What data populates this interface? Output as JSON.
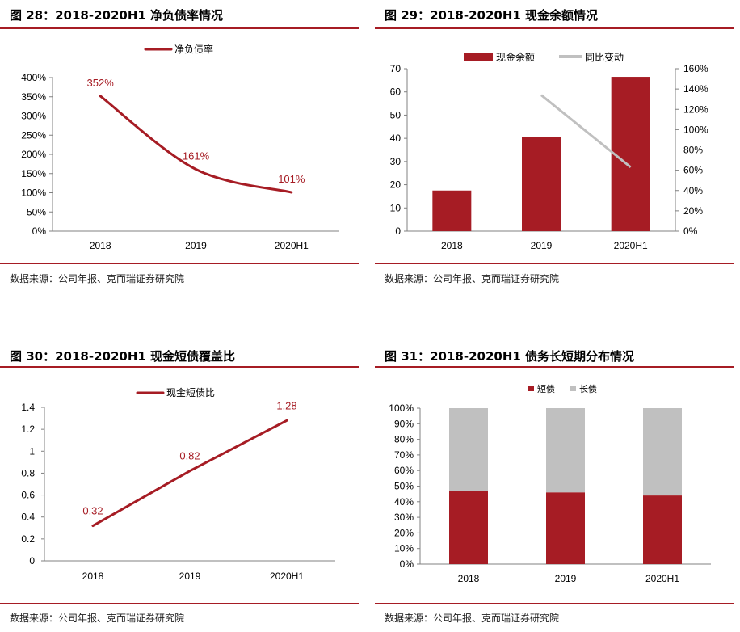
{
  "source_text": "数据来源：公司年报、克而瑞证券研究院",
  "colors": {
    "red": "#a61c24",
    "grey": "#c0c0c0",
    "axis": "#808080"
  },
  "chart_data": [
    {
      "title": "图 28：2018-2020H1 净负债率情况",
      "type": "line",
      "categories": [
        "2018",
        "2019",
        "2020H1"
      ],
      "series": [
        {
          "name": "净负债率",
          "values": [
            352,
            161,
            101
          ]
        }
      ],
      "data_labels": [
        "352%",
        "161%",
        "101%"
      ],
      "y_ticks": [
        "0%",
        "50%",
        "100%",
        "150%",
        "200%",
        "250%",
        "300%",
        "350%",
        "400%"
      ],
      "ylim": [
        0,
        400
      ],
      "smooth": true,
      "legend": "top"
    },
    {
      "title": "图 29：2018-2020H1 现金余额情况",
      "type": "bar",
      "categories": [
        "2018",
        "2019",
        "2020H1"
      ],
      "series": [
        {
          "name": "现金余额",
          "type": "bar",
          "axis": "left",
          "values": [
            17.5,
            40.7,
            66.5
          ]
        },
        {
          "name": "同比变动",
          "type": "line",
          "axis": "right",
          "values": [
            null,
            134,
            63
          ]
        }
      ],
      "y_ticks": [
        "0",
        "10",
        "20",
        "30",
        "40",
        "50",
        "60",
        "70"
      ],
      "y2_ticks": [
        "0%",
        "20%",
        "40%",
        "60%",
        "80%",
        "100%",
        "120%",
        "140%",
        "160%"
      ],
      "ylim": [
        0,
        70
      ],
      "y2lim": [
        0,
        160
      ],
      "legend": "top"
    },
    {
      "title": "图 30：2018-2020H1 现金短债覆盖比",
      "type": "line",
      "categories": [
        "2018",
        "2019",
        "2020H1"
      ],
      "series": [
        {
          "name": "现金短债比",
          "values": [
            0.32,
            0.82,
            1.28
          ]
        }
      ],
      "data_labels": [
        "0.32",
        "0.82",
        "1.28"
      ],
      "y_ticks": [
        "0",
        "0.2",
        "0.4",
        "0.6",
        "0.8",
        "1",
        "1.2",
        "1.4"
      ],
      "ylim": [
        0,
        1.4
      ],
      "legend": "top"
    },
    {
      "title": "图 31：2018-2020H1 债务长短期分布情况",
      "type": "bar",
      "stacked": true,
      "categories": [
        "2018",
        "2019",
        "2020H1"
      ],
      "series": [
        {
          "name": "短债",
          "values": [
            47,
            46,
            44
          ]
        },
        {
          "name": "长债",
          "values": [
            53,
            54,
            56
          ]
        }
      ],
      "y_ticks": [
        "0%",
        "10%",
        "20%",
        "30%",
        "40%",
        "50%",
        "60%",
        "70%",
        "80%",
        "90%",
        "100%"
      ],
      "ylim": [
        0,
        100
      ],
      "legend": "top"
    }
  ]
}
